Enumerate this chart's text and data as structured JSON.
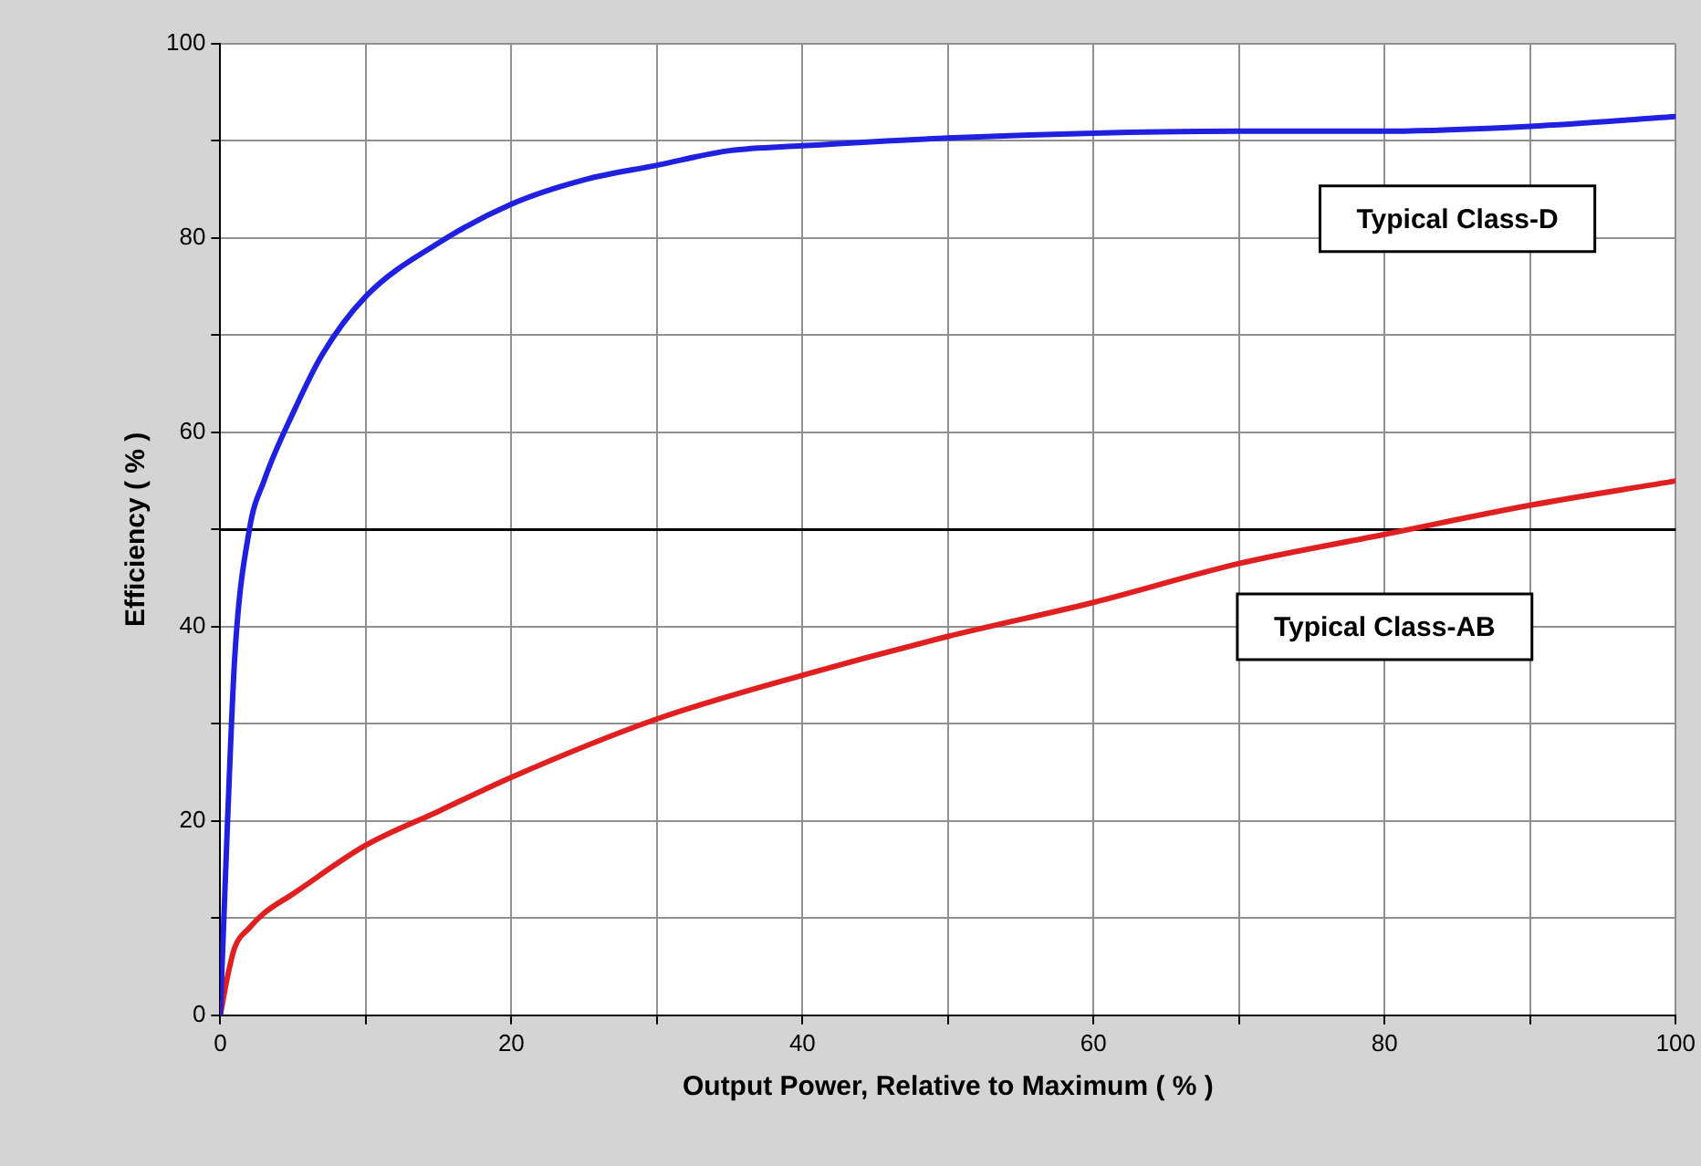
{
  "chart_data": {
    "type": "line",
    "xlabel": "Output Power, Relative to Maximum ( % )",
    "ylabel": "Efficiency ( % )",
    "xlim": [
      0,
      100
    ],
    "ylim": [
      0,
      100
    ],
    "xticks": [
      0,
      {
        "value": 10,
        "label": null
      },
      20,
      {
        "value": 30,
        "label": null
      },
      40,
      {
        "value": 50,
        "label": null
      },
      60,
      {
        "value": 70,
        "label": null
      },
      80,
      {
        "value": 90,
        "label": null
      },
      100
    ],
    "yticks": [
      0,
      {
        "value": 10,
        "label": null
      },
      20,
      {
        "value": 30,
        "label": null
      },
      40,
      {
        "value": 50,
        "label": null
      },
      60,
      {
        "value": 70,
        "label": null
      },
      80,
      {
        "value": 90,
        "label": null
      },
      100
    ],
    "grid": true,
    "legend": false,
    "marker": "none",
    "line_style": "solid",
    "ref_lines": [
      {
        "axis": "y",
        "value": 50,
        "color": "#000000"
      }
    ],
    "series": [
      {
        "name": "Typical Class-D",
        "color": "#2020e0",
        "x": [
          0,
          0.5,
          1,
          2,
          3,
          5,
          7,
          10,
          15,
          20,
          25,
          30,
          35,
          40,
          50,
          60,
          70,
          80,
          90,
          100
        ],
        "values": [
          0,
          20,
          37,
          50,
          55,
          62,
          68,
          74,
          79.5,
          83.5,
          86,
          87.5,
          89,
          89.5,
          90.3,
          90.8,
          91,
          91,
          91.5,
          92.5
        ]
      },
      {
        "name": "Typical Class-AB",
        "color": "#e02020",
        "x": [
          0,
          0.5,
          1,
          2,
          3,
          5,
          10,
          15,
          20,
          30,
          40,
          50,
          60,
          70,
          80,
          90,
          100
        ],
        "values": [
          0,
          4,
          7,
          9,
          10.5,
          12.5,
          17.5,
          21,
          24.5,
          30.5,
          35,
          39,
          42.5,
          46.5,
          49.5,
          52.5,
          55
        ]
      }
    ]
  }
}
